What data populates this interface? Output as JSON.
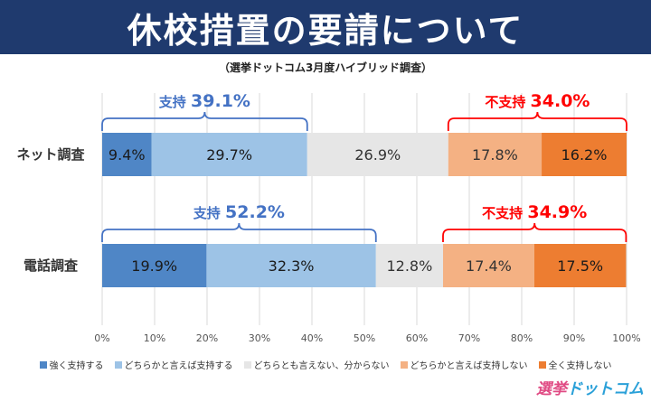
{
  "header": {
    "title": "休校措置の要請について",
    "subtitle": "（選挙ドットコム3月度ハイブリッド調査）"
  },
  "colors": {
    "strong_support": "#4f86c6",
    "support": "#9dc3e6",
    "neutral": "#e6e6e6",
    "oppose": "#f4b183",
    "strong_oppose": "#ed7d31",
    "support_brace": "#4472c4",
    "oppose_brace": "#ff0000"
  },
  "logo": {
    "part_a": "選挙",
    "part_b": "ドットコム"
  },
  "chart_data": {
    "type": "bar",
    "orientation": "horizontal",
    "stacked": true,
    "x_unit": "%",
    "xlim": [
      0,
      100
    ],
    "xticks": [
      "0%",
      "10%",
      "20%",
      "30%",
      "40%",
      "50%",
      "60%",
      "70%",
      "80%",
      "90%",
      "100%"
    ],
    "grid": true,
    "legend_position": "bottom",
    "categories": [
      "ネット調査",
      "電話調査"
    ],
    "series": [
      {
        "name": "強く支持する",
        "values": [
          9.4,
          19.9
        ],
        "labels": [
          "9.4%",
          "19.9%"
        ]
      },
      {
        "name": "どちらかと言えば支持する",
        "values": [
          29.7,
          32.3
        ],
        "labels": [
          "29.7%",
          "32.3%"
        ]
      },
      {
        "name": "どちらとも言えない、分からない",
        "values": [
          26.9,
          12.8
        ],
        "labels": [
          "26.9%",
          "12.8%"
        ]
      },
      {
        "name": "どちらかと言えば支持しない",
        "values": [
          17.8,
          17.4
        ],
        "labels": [
          "17.8%",
          "17.4%"
        ]
      },
      {
        "name": "全く支持しない",
        "values": [
          16.2,
          17.5
        ],
        "labels": [
          "16.2%",
          "17.5%"
        ]
      }
    ],
    "annotations": [
      {
        "row": 0,
        "group": "support",
        "word": "支持",
        "value": "39.1%"
      },
      {
        "row": 0,
        "group": "oppose",
        "word": "不支持",
        "value": "34.0%"
      },
      {
        "row": 1,
        "group": "support",
        "word": "支持",
        "value": "52.2%"
      },
      {
        "row": 1,
        "group": "oppose",
        "word": "不支持",
        "value": "34.9%"
      }
    ]
  }
}
